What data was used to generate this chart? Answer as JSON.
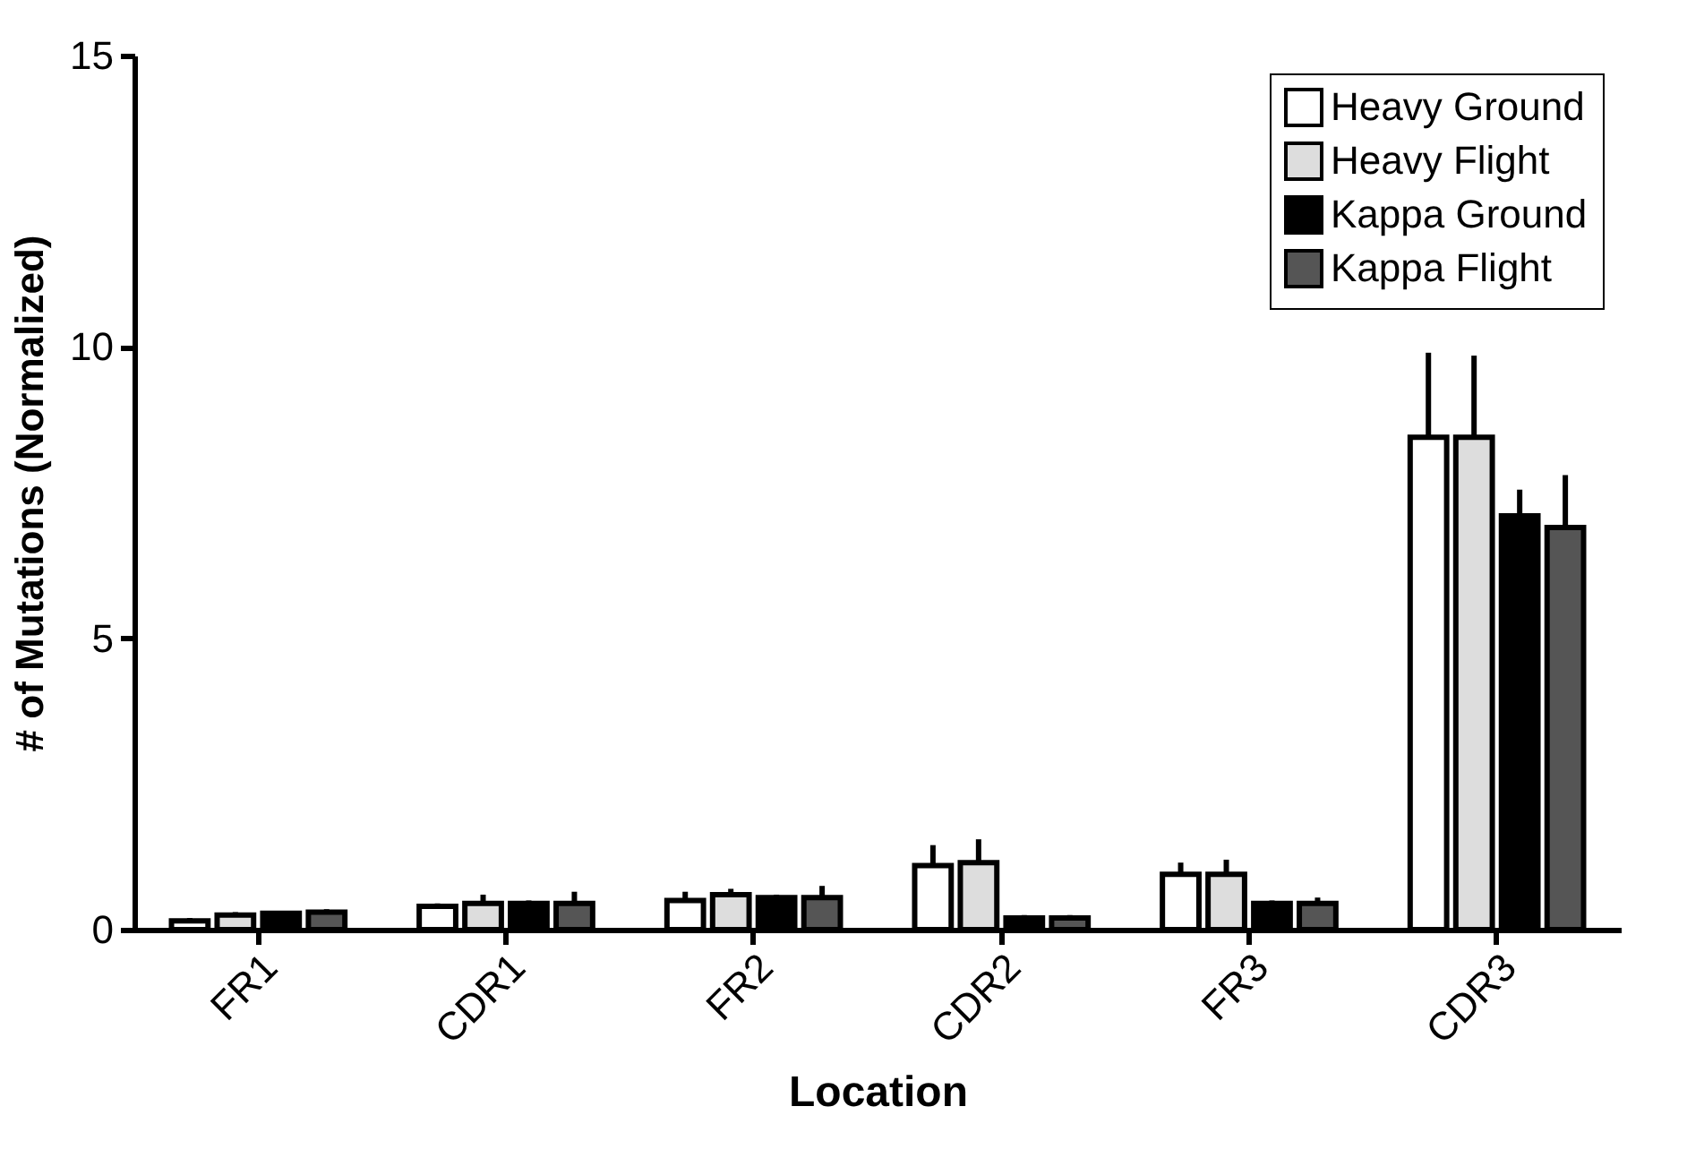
{
  "chart_data": {
    "type": "bar",
    "xlabel": "Location",
    "ylabel": "# of Mutations (Normalized)",
    "categories": [
      "FR1",
      "CDR1",
      "FR2",
      "CDR2",
      "FR3",
      "CDR3"
    ],
    "series": [
      {
        "name": "Heavy Ground",
        "color": "#ffffff",
        "values": [
          0.15,
          0.4,
          0.5,
          1.1,
          0.95,
          8.45
        ],
        "errors": [
          [
            0.15,
            0.2
          ],
          [
            0.4,
            0.45
          ],
          [
            0.5,
            0.65
          ],
          [
            1.1,
            1.45
          ],
          [
            0.95,
            1.15
          ],
          [
            8.45,
            9.9
          ]
        ]
      },
      {
        "name": "Heavy Flight",
        "color": "#dddddd",
        "values": [
          0.25,
          0.45,
          0.6,
          1.15,
          0.95,
          8.45
        ],
        "errors": [
          [
            0.25,
            0.3
          ],
          [
            0.45,
            0.6
          ],
          [
            0.6,
            0.7
          ],
          [
            1.15,
            1.55
          ],
          [
            0.95,
            1.2
          ],
          [
            8.45,
            9.85
          ]
        ]
      },
      {
        "name": "Kappa Ground",
        "color": "#000000",
        "values": [
          0.28,
          0.45,
          0.55,
          0.2,
          0.45,
          7.1
        ],
        "errors": [
          [
            0.28,
            0.32
          ],
          [
            0.45,
            0.5
          ],
          [
            0.55,
            0.6
          ],
          [
            0.2,
            0.25
          ],
          [
            0.45,
            0.5
          ],
          [
            7.1,
            7.55
          ]
        ]
      },
      {
        "name": "Kappa Flight",
        "color": "#555555",
        "values": [
          0.3,
          0.45,
          0.55,
          0.2,
          0.45,
          6.9
        ],
        "errors": [
          [
            0.3,
            0.35
          ],
          [
            0.45,
            0.65
          ],
          [
            0.55,
            0.75
          ],
          [
            0.2,
            0.25
          ],
          [
            0.45,
            0.55
          ],
          [
            6.9,
            7.8
          ]
        ]
      }
    ],
    "ylim": [
      0,
      15
    ],
    "yticks": [
      0,
      5,
      10,
      15
    ],
    "grid": false,
    "legend": "top right"
  }
}
